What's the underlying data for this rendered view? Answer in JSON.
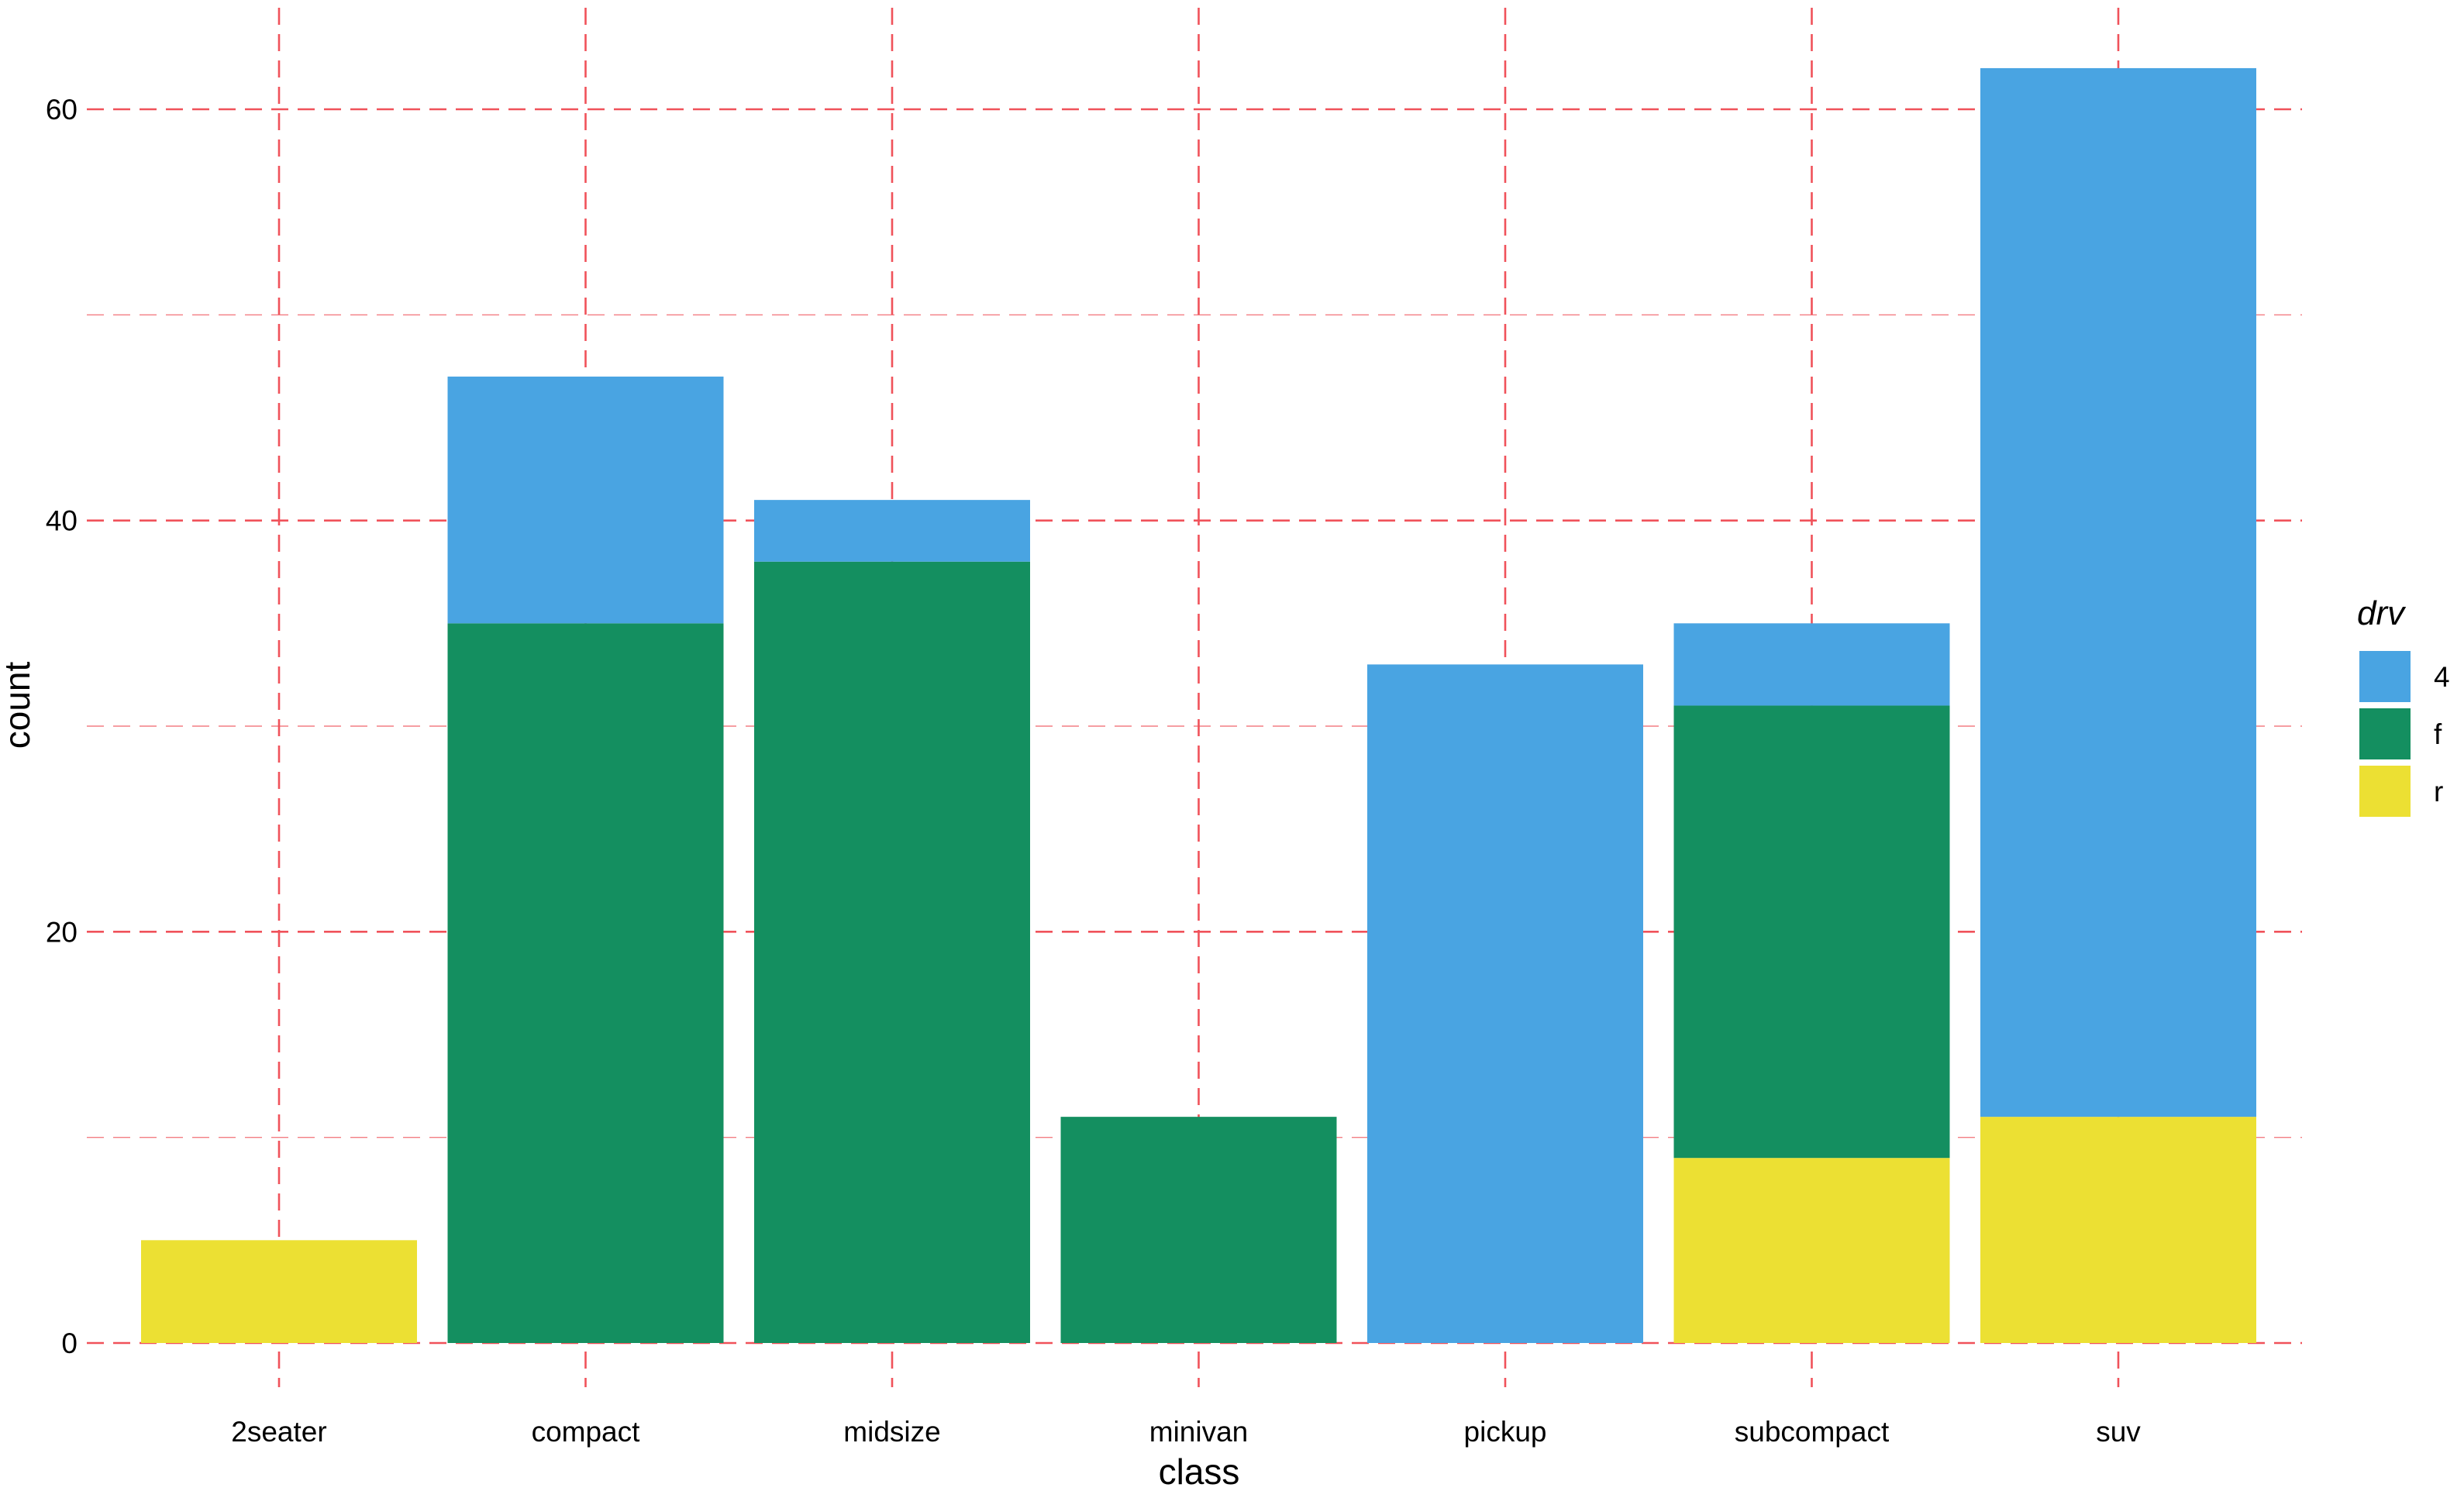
{
  "chart_data": {
    "type": "bar",
    "stacked": true,
    "title": "",
    "xlabel": "class",
    "ylabel": "count",
    "categories": [
      "2seater",
      "compact",
      "midsize",
      "minivan",
      "pickup",
      "subcompact",
      "suv"
    ],
    "series": [
      {
        "name": "4",
        "color": "#49A4E2",
        "values": [
          0,
          12,
          3,
          0,
          33,
          4,
          51
        ]
      },
      {
        "name": "f",
        "color": "#148F60",
        "values": [
          0,
          35,
          38,
          11,
          0,
          22,
          0
        ]
      },
      {
        "name": "r",
        "color": "#ECE033",
        "values": [
          5,
          0,
          0,
          0,
          0,
          9,
          11
        ]
      }
    ],
    "ylim": [
      0,
      62
    ],
    "yticks": [
      0,
      20,
      40,
      60
    ],
    "y_minor_gridlines": [
      10,
      30,
      50
    ],
    "grid": true,
    "grid_style": "dashed",
    "grid_color": "#F0525A",
    "legend": {
      "title": "drv",
      "position": "right",
      "entries": [
        "4",
        "f",
        "r"
      ]
    }
  }
}
